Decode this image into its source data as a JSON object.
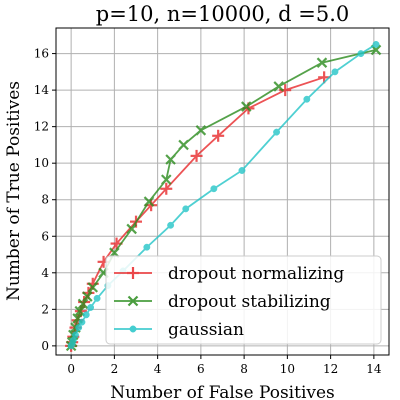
{
  "chart_data": {
    "type": "line",
    "title": "p=10, n=10000, d =5.0",
    "xlabel": "Number of False Positives",
    "ylabel": "Number of True Positives",
    "xlim": [
      -0.7,
      14.7
    ],
    "ylim": [
      -0.5,
      17.4
    ],
    "xticks": [
      0,
      2,
      4,
      6,
      8,
      10,
      12,
      14
    ],
    "yticks": [
      0,
      2,
      4,
      6,
      8,
      10,
      12,
      14,
      16
    ],
    "grid": true,
    "legend_position": "lower-right",
    "series": [
      {
        "name": "dropout normalizing",
        "color": "#e8292b",
        "marker": "plus",
        "x": [
          0.0,
          0.05,
          0.1,
          0.2,
          0.3,
          0.45,
          0.6,
          0.8,
          1.0,
          1.5,
          2.1,
          3.0,
          3.7,
          4.4,
          5.8,
          6.8,
          8.2,
          9.9,
          11.7
        ],
        "y": [
          0.0,
          0.2,
          0.5,
          1.0,
          1.4,
          1.9,
          2.4,
          2.9,
          3.4,
          4.6,
          5.6,
          6.8,
          7.7,
          8.6,
          10.4,
          11.5,
          13.0,
          14.0,
          14.7
        ]
      },
      {
        "name": "dropout stabilizing",
        "color": "#2b8c1e",
        "marker": "x",
        "x": [
          0.0,
          0.05,
          0.1,
          0.2,
          0.3,
          0.4,
          0.55,
          0.75,
          1.0,
          1.5,
          2.0,
          2.8,
          3.6,
          4.4,
          4.6,
          5.2,
          6.0,
          8.1,
          9.6,
          11.6,
          14.1
        ],
        "y": [
          0.0,
          0.2,
          0.6,
          1.0,
          1.5,
          1.9,
          2.3,
          2.7,
          3.2,
          4.0,
          5.1,
          6.4,
          7.9,
          9.1,
          10.2,
          11.0,
          11.8,
          13.1,
          14.2,
          15.5,
          16.2
        ]
      },
      {
        "name": "gaussian",
        "color": "#24c5c8",
        "marker": "circle",
        "x": [
          0.0,
          0.05,
          0.1,
          0.2,
          0.35,
          0.5,
          0.7,
          0.9,
          1.2,
          1.7,
          2.4,
          3.5,
          4.6,
          5.3,
          6.6,
          7.9,
          9.5,
          10.9,
          12.2,
          13.4,
          14.1
        ],
        "y": [
          0.0,
          0.1,
          0.3,
          0.6,
          1.0,
          1.3,
          1.7,
          2.1,
          2.6,
          3.3,
          4.1,
          5.4,
          6.6,
          7.5,
          8.6,
          9.6,
          11.7,
          13.5,
          15.0,
          16.0,
          16.5
        ]
      }
    ]
  }
}
